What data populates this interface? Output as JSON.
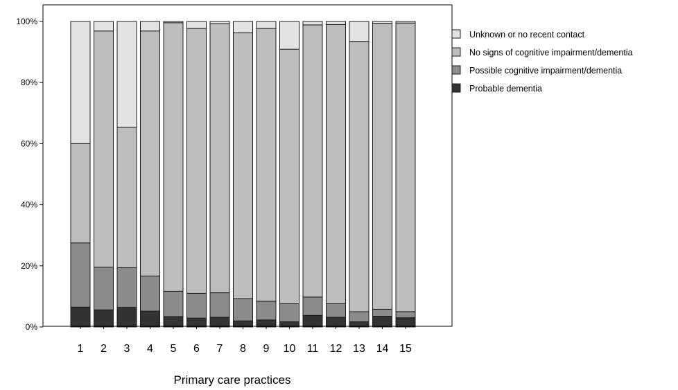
{
  "chart_data": {
    "type": "bar",
    "stacked": true,
    "percent": true,
    "title": "",
    "xlabel": "Primary care practices",
    "ylabel": "",
    "ylim": [
      0,
      100
    ],
    "yticks": [
      0,
      20,
      40,
      60,
      80,
      100
    ],
    "ytick_labels": [
      "0%",
      "20%",
      "40%",
      "60%",
      "80%",
      "100%"
    ],
    "grid": false,
    "legend_position": "right",
    "categories": [
      "1",
      "2",
      "3",
      "4",
      "5",
      "6",
      "7",
      "8",
      "9",
      "10",
      "11",
      "12",
      "13",
      "14",
      "15"
    ],
    "series": [
      {
        "name": "Probable dementia",
        "color": "#333333",
        "values": [
          6.5,
          5.6,
          6.4,
          5.2,
          3.4,
          2.9,
          3.2,
          2.0,
          2.3,
          1.7,
          3.8,
          3.2,
          1.7,
          3.5,
          3.0
        ]
      },
      {
        "name": "Possible cognitive impairment/dementia",
        "color": "#8c8c8c",
        "values": [
          21.0,
          14.0,
          13.0,
          11.5,
          8.3,
          8.1,
          8.0,
          7.3,
          6.1,
          5.9,
          6.0,
          4.4,
          3.3,
          2.3,
          2.0
        ]
      },
      {
        "name": "No signs of cognitive impairment/dementia",
        "color": "#bdbdbd",
        "values": [
          32.5,
          77.3,
          46.0,
          80.2,
          87.9,
          86.7,
          88.1,
          87.0,
          89.3,
          83.3,
          89.1,
          91.4,
          88.5,
          93.6,
          94.5
        ]
      },
      {
        "name": "Unknown or no recent contact",
        "color": "#e3e3e3",
        "values": [
          40.0,
          3.1,
          34.6,
          3.1,
          0.4,
          2.3,
          0.7,
          3.7,
          2.3,
          9.1,
          1.1,
          1.0,
          6.5,
          0.6,
          0.5
        ]
      }
    ],
    "legend_order": [
      "Unknown or no recent contact",
      "No signs of cognitive impairment/dementia",
      "Possible cognitive impairment/dementia",
      "Probable dementia"
    ]
  }
}
